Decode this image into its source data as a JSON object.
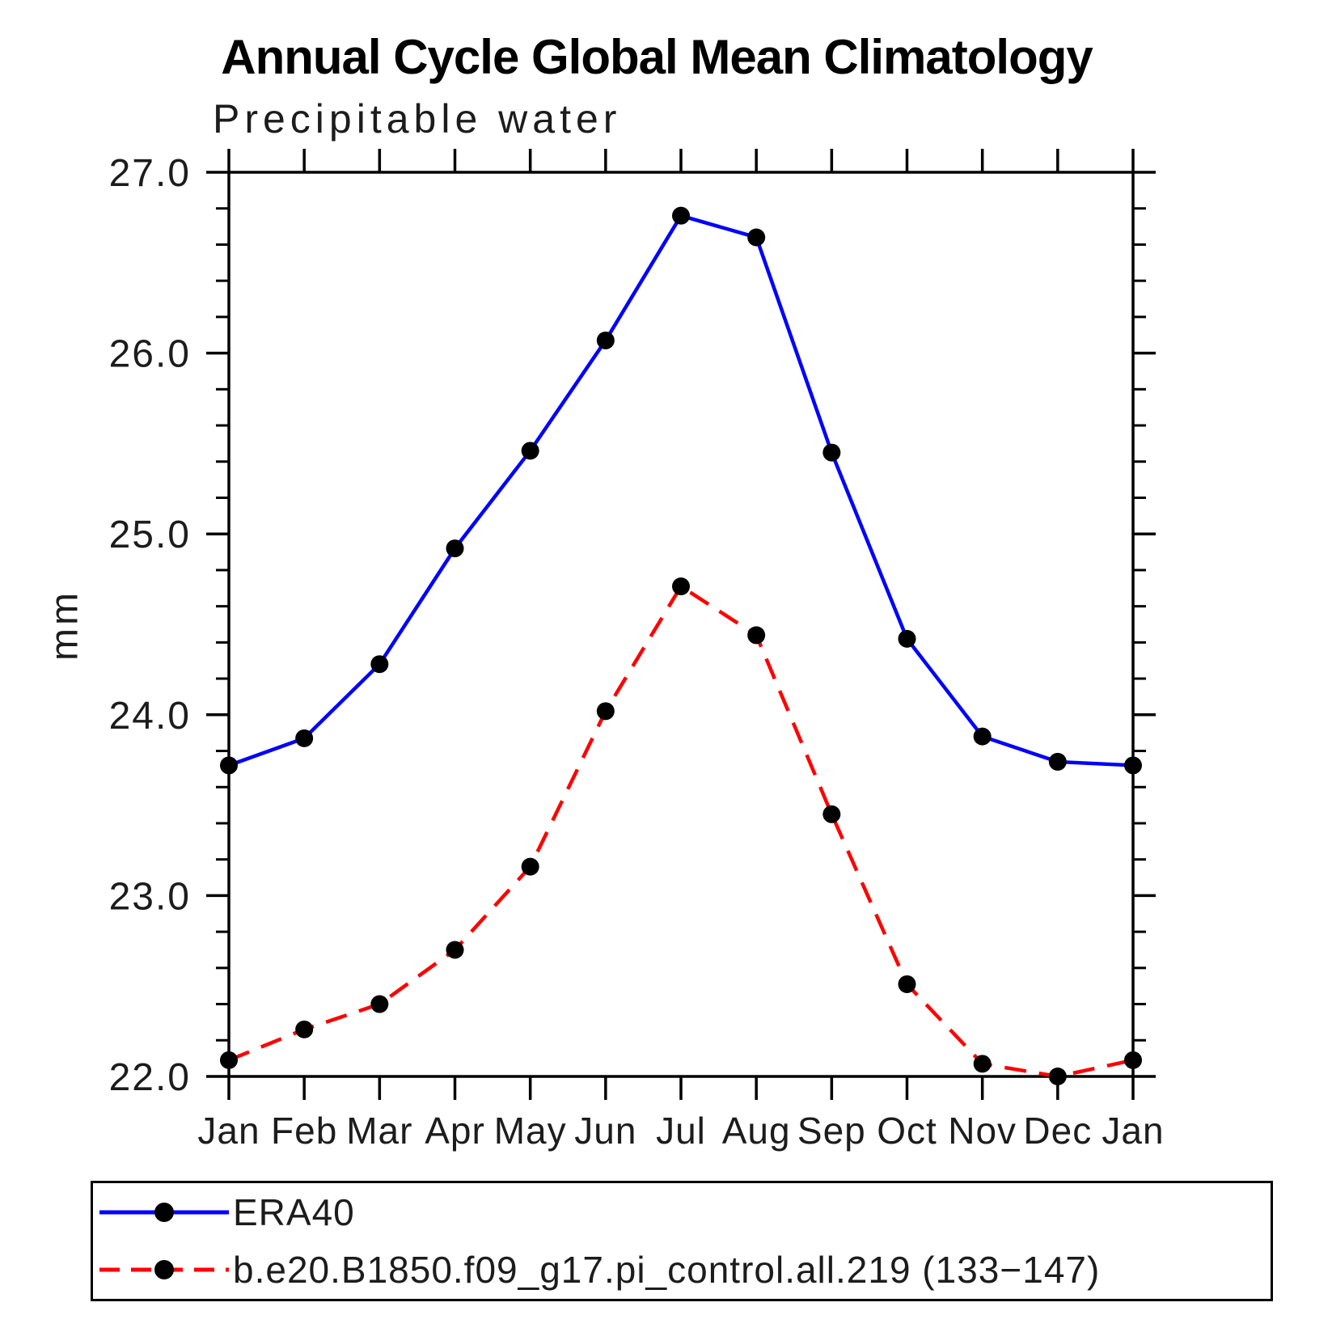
{
  "page": {
    "background": "#ffffff"
  },
  "chart_data": {
    "type": "line",
    "title": "Annual Cycle Global Mean Climatology",
    "subtitle": "Precipitable water",
    "ylabel": "mm",
    "categories": [
      "Jan",
      "Feb",
      "Mar",
      "Apr",
      "May",
      "Jun",
      "Jul",
      "Aug",
      "Sep",
      "Oct",
      "Nov",
      "Dec",
      "Jan"
    ],
    "ylim": [
      22.0,
      27.0
    ],
    "ytick_interval": 1.0,
    "yminor_interval": 0.2,
    "ytick_labels": [
      "27.0",
      "26.0",
      "25.0",
      "24.0",
      "23.0",
      "22.0"
    ],
    "grid": false,
    "legend_position": "bottom-left-box",
    "axis_color": "#000000",
    "marker": {
      "shape": "filled-circle",
      "color": "#000000"
    },
    "series": [
      {
        "name": "ERA40",
        "color": "#0000ff",
        "style": "solid",
        "values": [
          23.72,
          23.87,
          24.28,
          24.92,
          25.46,
          26.07,
          26.76,
          26.64,
          25.45,
          24.42,
          23.88,
          23.74,
          23.72
        ]
      },
      {
        "name": "b.e20.B1850.f09_g17.pi_control.all.219 (133−147)",
        "color": "#ff0000",
        "style": "dashed",
        "values": [
          22.09,
          22.26,
          22.4,
          22.7,
          23.16,
          24.02,
          24.71,
          24.44,
          23.45,
          22.51,
          22.07,
          22.0,
          22.09
        ]
      }
    ]
  }
}
